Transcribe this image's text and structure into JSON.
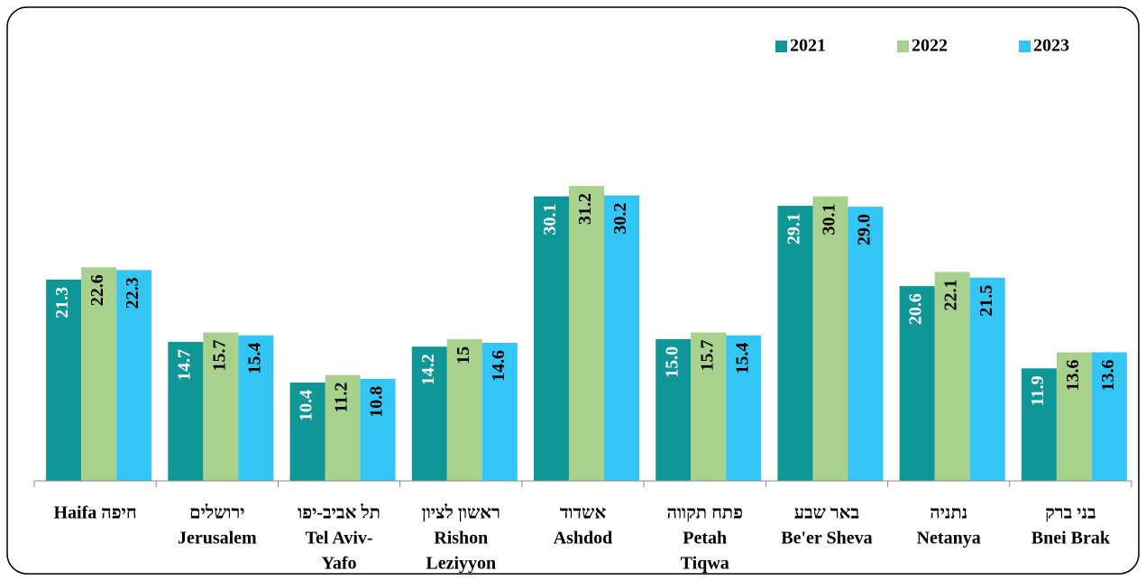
{
  "chart_data": {
    "type": "bar",
    "categories": [
      [
        "Haifa  חיפה"
      ],
      [
        "ירושלים",
        "Jerusalem"
      ],
      [
        "תל אביב-יפו",
        "Tel Aviv-",
        "Yafo"
      ],
      [
        "ראשון לציון",
        "Rishon",
        "Leziyyon"
      ],
      [
        "אשדוד",
        "Ashdod"
      ],
      [
        "פתח תקווה",
        "Petah",
        "Tiqwa"
      ],
      [
        "באר שבע",
        "Be'er Sheva"
      ],
      [
        "נתניה",
        "Netanya"
      ],
      [
        "בני ברק",
        "Bnei Brak"
      ]
    ],
    "series": [
      {
        "name": "2021",
        "color": "#0f9696",
        "label_color": "#ffffff",
        "values": [
          21.3,
          14.7,
          10.4,
          14.2,
          30.1,
          15.0,
          29.1,
          20.6,
          11.9
        ],
        "value_labels": [
          "21.3",
          "14.7",
          "10.4",
          "14.2",
          "30.1",
          "15.0",
          "29.1",
          "20.6",
          "11.9"
        ]
      },
      {
        "name": "2022",
        "color": "#a9d18e",
        "label_color": "#000000",
        "values": [
          22.6,
          15.7,
          11.2,
          15,
          31.2,
          15.7,
          30.1,
          22.1,
          13.6
        ],
        "value_labels": [
          "22.6",
          "15.7",
          "11.2",
          "15",
          "31.2",
          "15.7",
          "30.1",
          "22.1",
          "13.6"
        ]
      },
      {
        "name": "2023",
        "color": "#33c6f4",
        "label_color": "#000000",
        "values": [
          22.3,
          15.4,
          10.8,
          14.6,
          30.2,
          15.4,
          29.0,
          21.5,
          13.6
        ],
        "value_labels": [
          "22.3",
          "15.4",
          "10.8",
          "14.6",
          "30.2",
          "15.4",
          "29.0",
          "21.5",
          "13.6"
        ]
      }
    ],
    "ylim": [
      0,
      44
    ],
    "legend": "top-right"
  }
}
